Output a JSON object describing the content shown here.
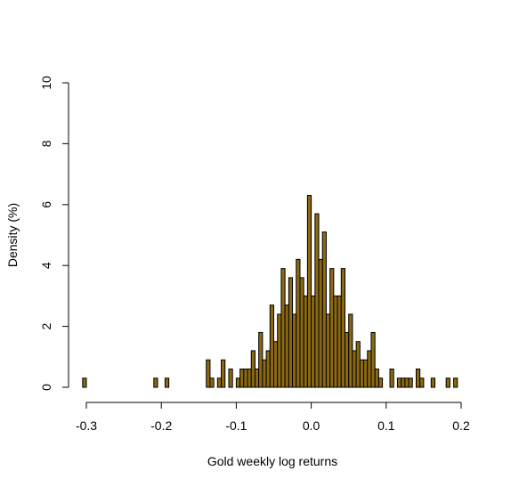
{
  "chart_data": {
    "type": "bar",
    "title": "",
    "xlabel": "Gold weekly log returns",
    "ylabel": "Density (%)",
    "xlim": [
      -0.3,
      0.2
    ],
    "ylim": [
      0,
      10
    ],
    "x_ticks": [
      "-0.3",
      "-0.2",
      "-0.1",
      "0.0",
      "0.1",
      "0.2"
    ],
    "x_tick_values": [
      -0.3,
      -0.2,
      -0.1,
      0.0,
      0.1,
      0.2
    ],
    "y_ticks": [
      "0",
      "2",
      "4",
      "6",
      "8",
      "10"
    ],
    "y_tick_values": [
      0,
      2,
      4,
      6,
      8,
      10
    ],
    "bin_width": 0.005,
    "bar_color": "#8B6914",
    "grid": false,
    "bins": [
      {
        "x0": -0.305,
        "value": 0.3
      },
      {
        "x0": -0.21,
        "value": 0.3
      },
      {
        "x0": -0.195,
        "value": 0.3
      },
      {
        "x0": -0.14,
        "value": 0.9
      },
      {
        "x0": -0.135,
        "value": 0.3
      },
      {
        "x0": -0.125,
        "value": 0.3
      },
      {
        "x0": -0.12,
        "value": 0.9
      },
      {
        "x0": -0.11,
        "value": 0.6
      },
      {
        "x0": -0.1,
        "value": 0.3
      },
      {
        "x0": -0.095,
        "value": 0.6
      },
      {
        "x0": -0.09,
        "value": 0.6
      },
      {
        "x0": -0.085,
        "value": 0.6
      },
      {
        "x0": -0.08,
        "value": 1.2
      },
      {
        "x0": -0.075,
        "value": 0.6
      },
      {
        "x0": -0.07,
        "value": 1.8
      },
      {
        "x0": -0.065,
        "value": 0.9
      },
      {
        "x0": -0.06,
        "value": 1.2
      },
      {
        "x0": -0.055,
        "value": 2.7
      },
      {
        "x0": -0.05,
        "value": 1.5
      },
      {
        "x0": -0.045,
        "value": 2.4
      },
      {
        "x0": -0.04,
        "value": 3.9
      },
      {
        "x0": -0.035,
        "value": 2.7
      },
      {
        "x0": -0.03,
        "value": 3.6
      },
      {
        "x0": -0.025,
        "value": 2.4
      },
      {
        "x0": -0.02,
        "value": 4.2
      },
      {
        "x0": -0.015,
        "value": 3.6
      },
      {
        "x0": -0.01,
        "value": 3.0
      },
      {
        "x0": -0.005,
        "value": 6.3
      },
      {
        "x0": 0.0,
        "value": 3.0
      },
      {
        "x0": 0.005,
        "value": 5.7
      },
      {
        "x0": 0.01,
        "value": 4.2
      },
      {
        "x0": 0.015,
        "value": 5.1
      },
      {
        "x0": 0.02,
        "value": 2.4
      },
      {
        "x0": 0.025,
        "value": 3.9
      },
      {
        "x0": 0.03,
        "value": 3.0
      },
      {
        "x0": 0.035,
        "value": 3.0
      },
      {
        "x0": 0.04,
        "value": 3.9
      },
      {
        "x0": 0.045,
        "value": 1.8
      },
      {
        "x0": 0.05,
        "value": 2.4
      },
      {
        "x0": 0.055,
        "value": 1.2
      },
      {
        "x0": 0.06,
        "value": 1.5
      },
      {
        "x0": 0.065,
        "value": 0.9
      },
      {
        "x0": 0.07,
        "value": 0.9
      },
      {
        "x0": 0.075,
        "value": 1.2
      },
      {
        "x0": 0.08,
        "value": 1.8
      },
      {
        "x0": 0.085,
        "value": 0.6
      },
      {
        "x0": 0.09,
        "value": 0.3
      },
      {
        "x0": 0.105,
        "value": 0.6
      },
      {
        "x0": 0.115,
        "value": 0.3
      },
      {
        "x0": 0.12,
        "value": 0.3
      },
      {
        "x0": 0.125,
        "value": 0.3
      },
      {
        "x0": 0.13,
        "value": 0.3
      },
      {
        "x0": 0.14,
        "value": 0.6
      },
      {
        "x0": 0.145,
        "value": 0.3
      },
      {
        "x0": 0.16,
        "value": 0.3
      },
      {
        "x0": 0.18,
        "value": 0.3
      },
      {
        "x0": 0.19,
        "value": 0.3
      }
    ]
  }
}
